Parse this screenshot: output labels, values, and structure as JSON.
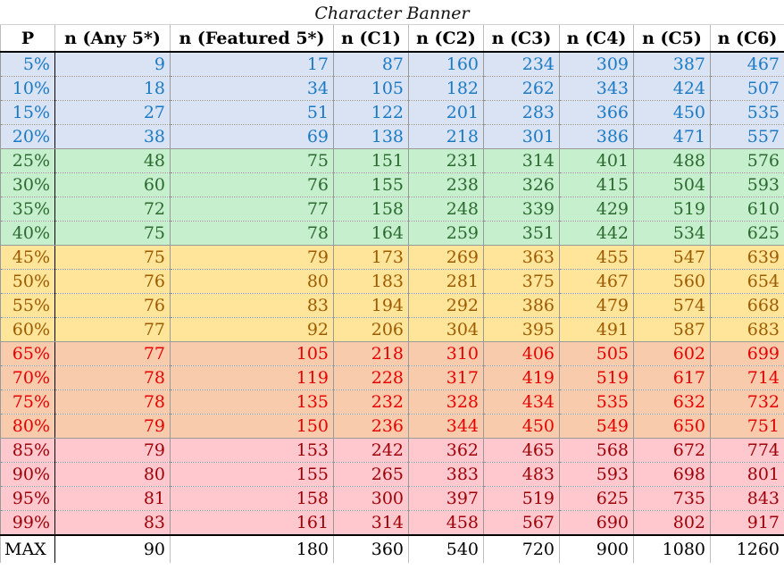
{
  "title": "Character Banner",
  "headers": [
    "P",
    "n (Any 5*)",
    "n (Featured 5*)",
    "n (C1)",
    "n (C2)",
    "n (C3)",
    "n (C4)",
    "n (C5)",
    "n (C6)"
  ],
  "tier_colors": {
    "blue": {
      "bg": "#dae3f4",
      "fg": "#1a7ac4"
    },
    "green": {
      "bg": "#c6efce",
      "fg": "#2b6a2f"
    },
    "yellow": {
      "bg": "#ffe59a",
      "fg": "#9c5b00"
    },
    "orange": {
      "bg": "#f8cbad",
      "fg": "#e80000"
    },
    "pink": {
      "bg": "#ffc7ce",
      "fg": "#9c0006"
    }
  },
  "rows": [
    {
      "tier": "blue",
      "cells": [
        "5%",
        "9",
        "17",
        "87",
        "160",
        "234",
        "309",
        "387",
        "467"
      ]
    },
    {
      "tier": "blue",
      "cells": [
        "10%",
        "18",
        "34",
        "105",
        "182",
        "262",
        "343",
        "424",
        "507"
      ]
    },
    {
      "tier": "blue",
      "cells": [
        "15%",
        "27",
        "51",
        "122",
        "201",
        "283",
        "366",
        "450",
        "535"
      ]
    },
    {
      "tier": "blue",
      "cells": [
        "20%",
        "38",
        "69",
        "138",
        "218",
        "301",
        "386",
        "471",
        "557"
      ]
    },
    {
      "tier": "green",
      "cells": [
        "25%",
        "48",
        "75",
        "151",
        "231",
        "314",
        "401",
        "488",
        "576"
      ]
    },
    {
      "tier": "green",
      "cells": [
        "30%",
        "60",
        "76",
        "155",
        "238",
        "326",
        "415",
        "504",
        "593"
      ]
    },
    {
      "tier": "green",
      "cells": [
        "35%",
        "72",
        "77",
        "158",
        "248",
        "339",
        "429",
        "519",
        "610"
      ]
    },
    {
      "tier": "green",
      "cells": [
        "40%",
        "75",
        "78",
        "164",
        "259",
        "351",
        "442",
        "534",
        "625"
      ]
    },
    {
      "tier": "yellow",
      "cells": [
        "45%",
        "75",
        "79",
        "173",
        "269",
        "363",
        "455",
        "547",
        "639"
      ]
    },
    {
      "tier": "yellow",
      "cells": [
        "50%",
        "76",
        "80",
        "183",
        "281",
        "375",
        "467",
        "560",
        "654"
      ]
    },
    {
      "tier": "yellow",
      "cells": [
        "55%",
        "76",
        "83",
        "194",
        "292",
        "386",
        "479",
        "574",
        "668"
      ]
    },
    {
      "tier": "yellow",
      "cells": [
        "60%",
        "77",
        "92",
        "206",
        "304",
        "395",
        "491",
        "587",
        "683"
      ]
    },
    {
      "tier": "orange",
      "cells": [
        "65%",
        "77",
        "105",
        "218",
        "310",
        "406",
        "505",
        "602",
        "699"
      ]
    },
    {
      "tier": "orange",
      "cells": [
        "70%",
        "78",
        "119",
        "228",
        "317",
        "419",
        "519",
        "617",
        "714"
      ]
    },
    {
      "tier": "orange",
      "cells": [
        "75%",
        "78",
        "135",
        "232",
        "328",
        "434",
        "535",
        "632",
        "732"
      ]
    },
    {
      "tier": "orange",
      "cells": [
        "80%",
        "79",
        "150",
        "236",
        "344",
        "450",
        "549",
        "650",
        "751"
      ]
    },
    {
      "tier": "pink",
      "cells": [
        "85%",
        "79",
        "153",
        "242",
        "362",
        "465",
        "568",
        "672",
        "774"
      ]
    },
    {
      "tier": "pink",
      "cells": [
        "90%",
        "80",
        "155",
        "265",
        "383",
        "483",
        "593",
        "698",
        "801"
      ]
    },
    {
      "tier": "pink",
      "cells": [
        "95%",
        "81",
        "158",
        "300",
        "397",
        "519",
        "625",
        "735",
        "843"
      ]
    },
    {
      "tier": "pink",
      "cells": [
        "99%",
        "83",
        "161",
        "314",
        "458",
        "567",
        "690",
        "802",
        "917"
      ]
    }
  ],
  "footer": [
    "MAX",
    "90",
    "180",
    "360",
    "540",
    "720",
    "900",
    "1080",
    "1260"
  ]
}
